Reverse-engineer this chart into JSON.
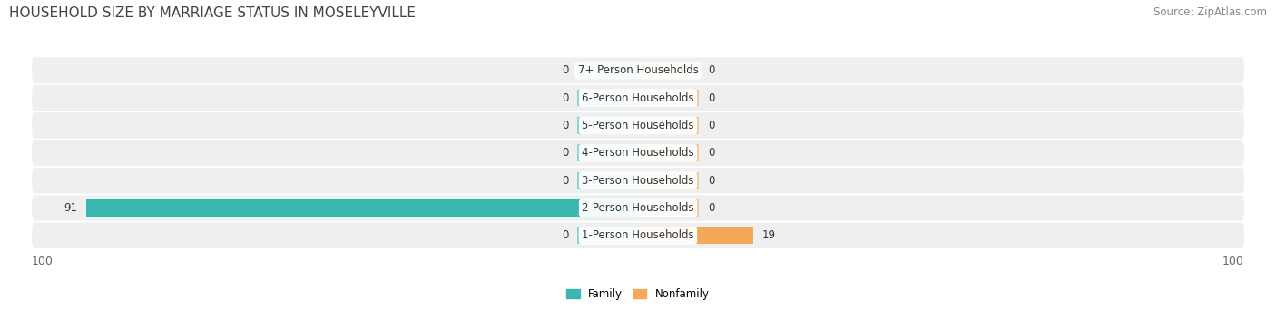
{
  "title": "HOUSEHOLD SIZE BY MARRIAGE STATUS IN MOSELEYVILLE",
  "source": "Source: ZipAtlas.com",
  "categories": [
    "7+ Person Households",
    "6-Person Households",
    "5-Person Households",
    "4-Person Households",
    "3-Person Households",
    "2-Person Households",
    "1-Person Households"
  ],
  "family_values": [
    0,
    0,
    0,
    0,
    0,
    91,
    0
  ],
  "nonfamily_values": [
    0,
    0,
    0,
    0,
    0,
    0,
    19
  ],
  "family_color": "#3ab8b0",
  "nonfamily_color": "#f5a858",
  "family_color_light": "#8ed4cf",
  "nonfamily_color_light": "#f7c89a",
  "row_bg_color": "#efefef",
  "xlim_left": -100,
  "xlim_right": 100,
  "stub_size": 10,
  "legend_labels": [
    "Family",
    "Nonfamily"
  ],
  "title_fontsize": 11,
  "source_fontsize": 8.5,
  "label_fontsize": 8.5,
  "value_fontsize": 8.5,
  "tick_fontsize": 9
}
